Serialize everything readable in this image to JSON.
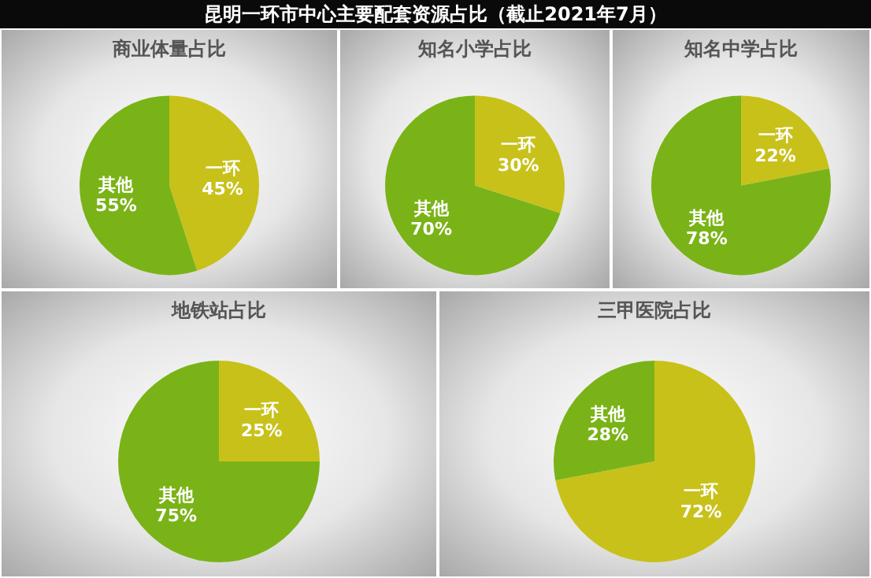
{
  "chart_data": [
    {
      "type": "other",
      "title": "昆明一环市中心主要配套资源占比（截止2021年7月）"
    },
    {
      "type": "pie",
      "title": "商业体量占比",
      "categories": [
        "一环",
        "其他"
      ],
      "values": [
        45,
        55
      ],
      "value_labels": [
        "45%",
        "55%"
      ],
      "colors": [
        "#c8c11a",
        "#7ab317"
      ]
    },
    {
      "type": "pie",
      "title": "知名小学占比",
      "categories": [
        "一环",
        "其他"
      ],
      "values": [
        30,
        70
      ],
      "value_labels": [
        "30%",
        "70%"
      ],
      "colors": [
        "#c8c11a",
        "#7ab317"
      ]
    },
    {
      "type": "pie",
      "title": "知名中学占比",
      "categories": [
        "一环",
        "其他"
      ],
      "values": [
        22,
        78
      ],
      "value_labels": [
        "22%",
        "78%"
      ],
      "colors": [
        "#c8c11a",
        "#7ab317"
      ]
    },
    {
      "type": "pie",
      "title": "地铁站占比",
      "categories": [
        "一环",
        "其他"
      ],
      "values": [
        25,
        75
      ],
      "value_labels": [
        "25%",
        "75%"
      ],
      "colors": [
        "#c8c11a",
        "#7ab317"
      ]
    },
    {
      "type": "pie",
      "title": "三甲医院占比",
      "categories": [
        "一环",
        "其他"
      ],
      "values": [
        72,
        28
      ],
      "value_labels": [
        "72%",
        "28%"
      ],
      "colors": [
        "#c8c11a",
        "#7ab317"
      ]
    }
  ]
}
